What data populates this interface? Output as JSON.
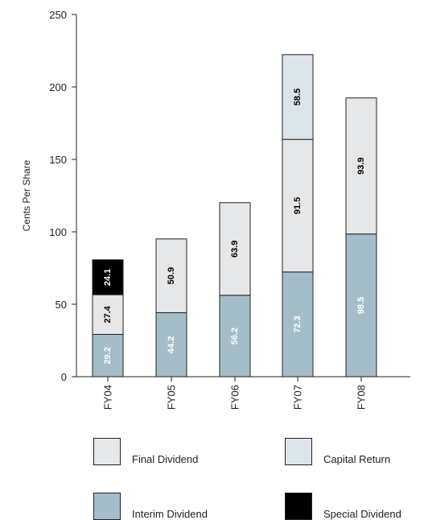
{
  "chart_data": {
    "type": "bar",
    "stacked": true,
    "ylabel": "Cents Per Share",
    "categories": [
      "FY04",
      "FY05",
      "FY06",
      "FY07",
      "FY08"
    ],
    "ylim": [
      0,
      250
    ],
    "yticks": [
      0,
      50,
      100,
      150,
      200,
      250
    ],
    "grid": false,
    "legend_position": "bottom",
    "series": [
      {
        "name": "Interim Dividend",
        "color": "#a5bdc9",
        "label_color": "#ffffff",
        "values": [
          29.2,
          44.2,
          56.2,
          72.3,
          98.5
        ]
      },
      {
        "name": "Final Dividend",
        "color": "#e6e7e9",
        "label_color": "#000000",
        "values": [
          27.4,
          50.9,
          63.9,
          91.5,
          93.9
        ]
      },
      {
        "name": "Special Dividend",
        "color": "#000000",
        "label_color": "#ffffff",
        "values": [
          24.1,
          null,
          null,
          null,
          null
        ]
      },
      {
        "name": "Capital Return",
        "color": "#dce5e9",
        "label_color": "#000000",
        "values": [
          null,
          null,
          null,
          58.5,
          null
        ]
      }
    ]
  },
  "legend": [
    {
      "label": "Final Dividend",
      "color": "#e6e7e9"
    },
    {
      "label": "Capital Return",
      "color": "#dce5e9"
    },
    {
      "label": "Interim Dividend",
      "color": "#a5bdc9"
    },
    {
      "label": "Special Dividend",
      "color": "#000000"
    }
  ]
}
